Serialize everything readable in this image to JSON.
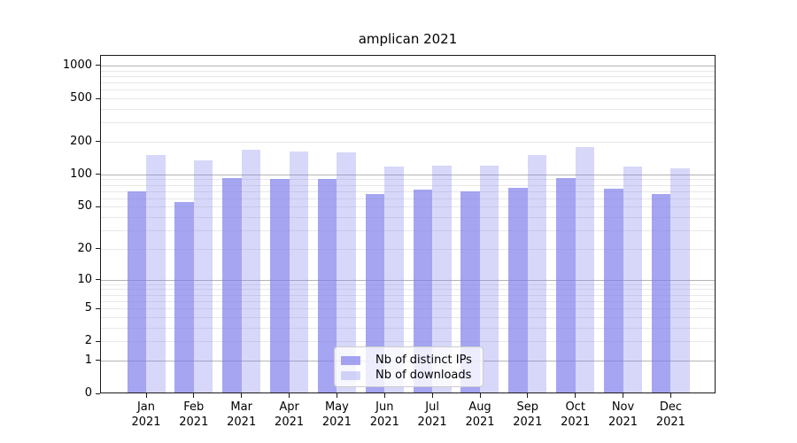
{
  "title": "amplican 2021",
  "chart_data": {
    "type": "bar",
    "title": "amplican 2021",
    "x_tick_line1": [
      "Jan",
      "Feb",
      "Mar",
      "Apr",
      "May",
      "Jun",
      "Jul",
      "Aug",
      "Sep",
      "Oct",
      "Nov",
      "Dec"
    ],
    "x_tick_line2": "2021",
    "series": [
      {
        "name": "Nb of distinct IPs",
        "color": "#7b7bec",
        "opacity": 0.68,
        "values": [
          70,
          55,
          92,
          90,
          90,
          66,
          72,
          70,
          75,
          92,
          74,
          66
        ]
      },
      {
        "name": "Nb of downloads",
        "color": "#7b7bec",
        "opacity": 0.3,
        "values": [
          152,
          135,
          168,
          162,
          159,
          119,
          121,
          120,
          150,
          178,
          118,
          114
        ]
      }
    ],
    "y_ticks": [
      0,
      1,
      2,
      5,
      10,
      20,
      50,
      100,
      200,
      500,
      1000
    ],
    "y_scale": "log10(1+x)",
    "y_max": 1250,
    "grid": {
      "major_values": [
        1,
        10,
        100,
        1000
      ],
      "minor_values": [
        2,
        3,
        4,
        5,
        6,
        7,
        8,
        9,
        20,
        30,
        40,
        50,
        60,
        70,
        80,
        90,
        200,
        300,
        400,
        500,
        600,
        700,
        800,
        900
      ],
      "major_color": "#b4b4b4",
      "minor_color": "#e8e8e8"
    },
    "legend_position": "lower center"
  }
}
